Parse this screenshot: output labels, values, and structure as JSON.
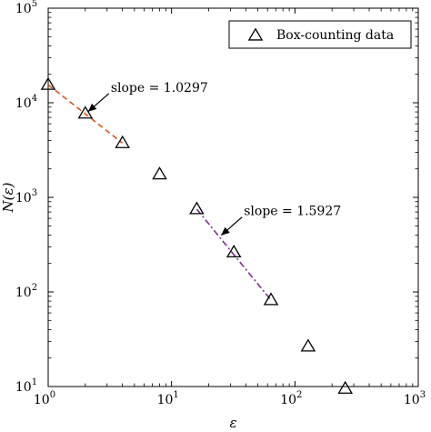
{
  "chart_data": {
    "type": "scatter",
    "xlabel": "ε",
    "ylabel": "N(ε)",
    "xscale": "log",
    "yscale": "log",
    "xlim": [
      1,
      1000
    ],
    "ylim": [
      10,
      100000
    ],
    "grid": false,
    "legend_position": "top-right",
    "x_ticks": [
      {
        "value": 1,
        "base": "10",
        "exp": "0"
      },
      {
        "value": 10,
        "base": "10",
        "exp": "1"
      },
      {
        "value": 100,
        "base": "10",
        "exp": "2"
      },
      {
        "value": 1000,
        "base": "10",
        "exp": "3"
      }
    ],
    "y_ticks": [
      {
        "value": 10,
        "base": "10",
        "exp": "1"
      },
      {
        "value": 100,
        "base": "10",
        "exp": "2"
      },
      {
        "value": 1000,
        "base": "10",
        "exp": "3"
      },
      {
        "value": 10000,
        "base": "10",
        "exp": "4"
      },
      {
        "value": 100000,
        "base": "10",
        "exp": "5"
      }
    ],
    "series": [
      {
        "name": "Box-counting data",
        "marker": "triangle",
        "color": "#000000",
        "x": [
          1,
          2,
          4,
          8,
          16,
          32,
          64,
          128,
          256
        ],
        "y": [
          15500,
          7700,
          3750,
          1750,
          750,
          262,
          82,
          26.5,
          9.5
        ]
      }
    ],
    "fits": [
      {
        "style": "dashed",
        "color": "#d95319",
        "x": [
          1,
          4
        ],
        "y": [
          15500,
          3750
        ],
        "annotation": "slope = 1.0297",
        "arrow_to": [
          2,
          7700
        ]
      },
      {
        "style": "dashdot",
        "color": "#7e2f8e",
        "x": [
          16,
          64
        ],
        "y": [
          750,
          82
        ],
        "annotation": "slope = 1.5927",
        "arrow_to": [
          24,
          380
        ]
      }
    ]
  }
}
